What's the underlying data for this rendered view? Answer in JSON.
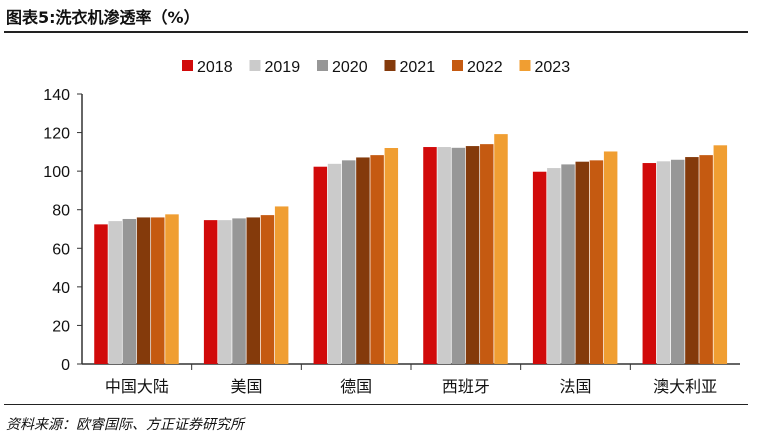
{
  "title": "图表5:洗衣机渗透率（%）",
  "source": "资料来源：欧睿国际、方正证券研究所",
  "chart_data": {
    "type": "bar",
    "title": "图表5:洗衣机渗透率（%）",
    "categories": [
      "中国大陆",
      "美国",
      "德国",
      "西班牙",
      "法国",
      "澳大利亚"
    ],
    "ylim": [
      0,
      140
    ],
    "yticks": [
      0,
      20,
      40,
      60,
      80,
      100,
      120,
      140
    ],
    "grid": false,
    "legend": "top",
    "series": [
      {
        "name": "2018",
        "color": "#d10a0a",
        "values": [
          72.4,
          74.6,
          102.3,
          112.5,
          99.7,
          104.2
        ]
      },
      {
        "name": "2019",
        "color": "#cbcbcb",
        "values": [
          74.1,
          74.6,
          103.8,
          112.5,
          101.6,
          105.1
        ]
      },
      {
        "name": "2020",
        "color": "#979797",
        "values": [
          75.2,
          75.5,
          105.6,
          112.1,
          103.5,
          105.9
        ]
      },
      {
        "name": "2021",
        "color": "#843a0b",
        "values": [
          76.0,
          76.0,
          107.1,
          113.0,
          104.9,
          107.3
        ]
      },
      {
        "name": "2022",
        "color": "#c55a11",
        "values": [
          76.0,
          77.2,
          108.3,
          114.0,
          105.6,
          108.3
        ]
      },
      {
        "name": "2023",
        "color": "#f09e32",
        "values": [
          77.6,
          81.7,
          112.0,
          119.2,
          110.2,
          113.4
        ]
      }
    ]
  }
}
